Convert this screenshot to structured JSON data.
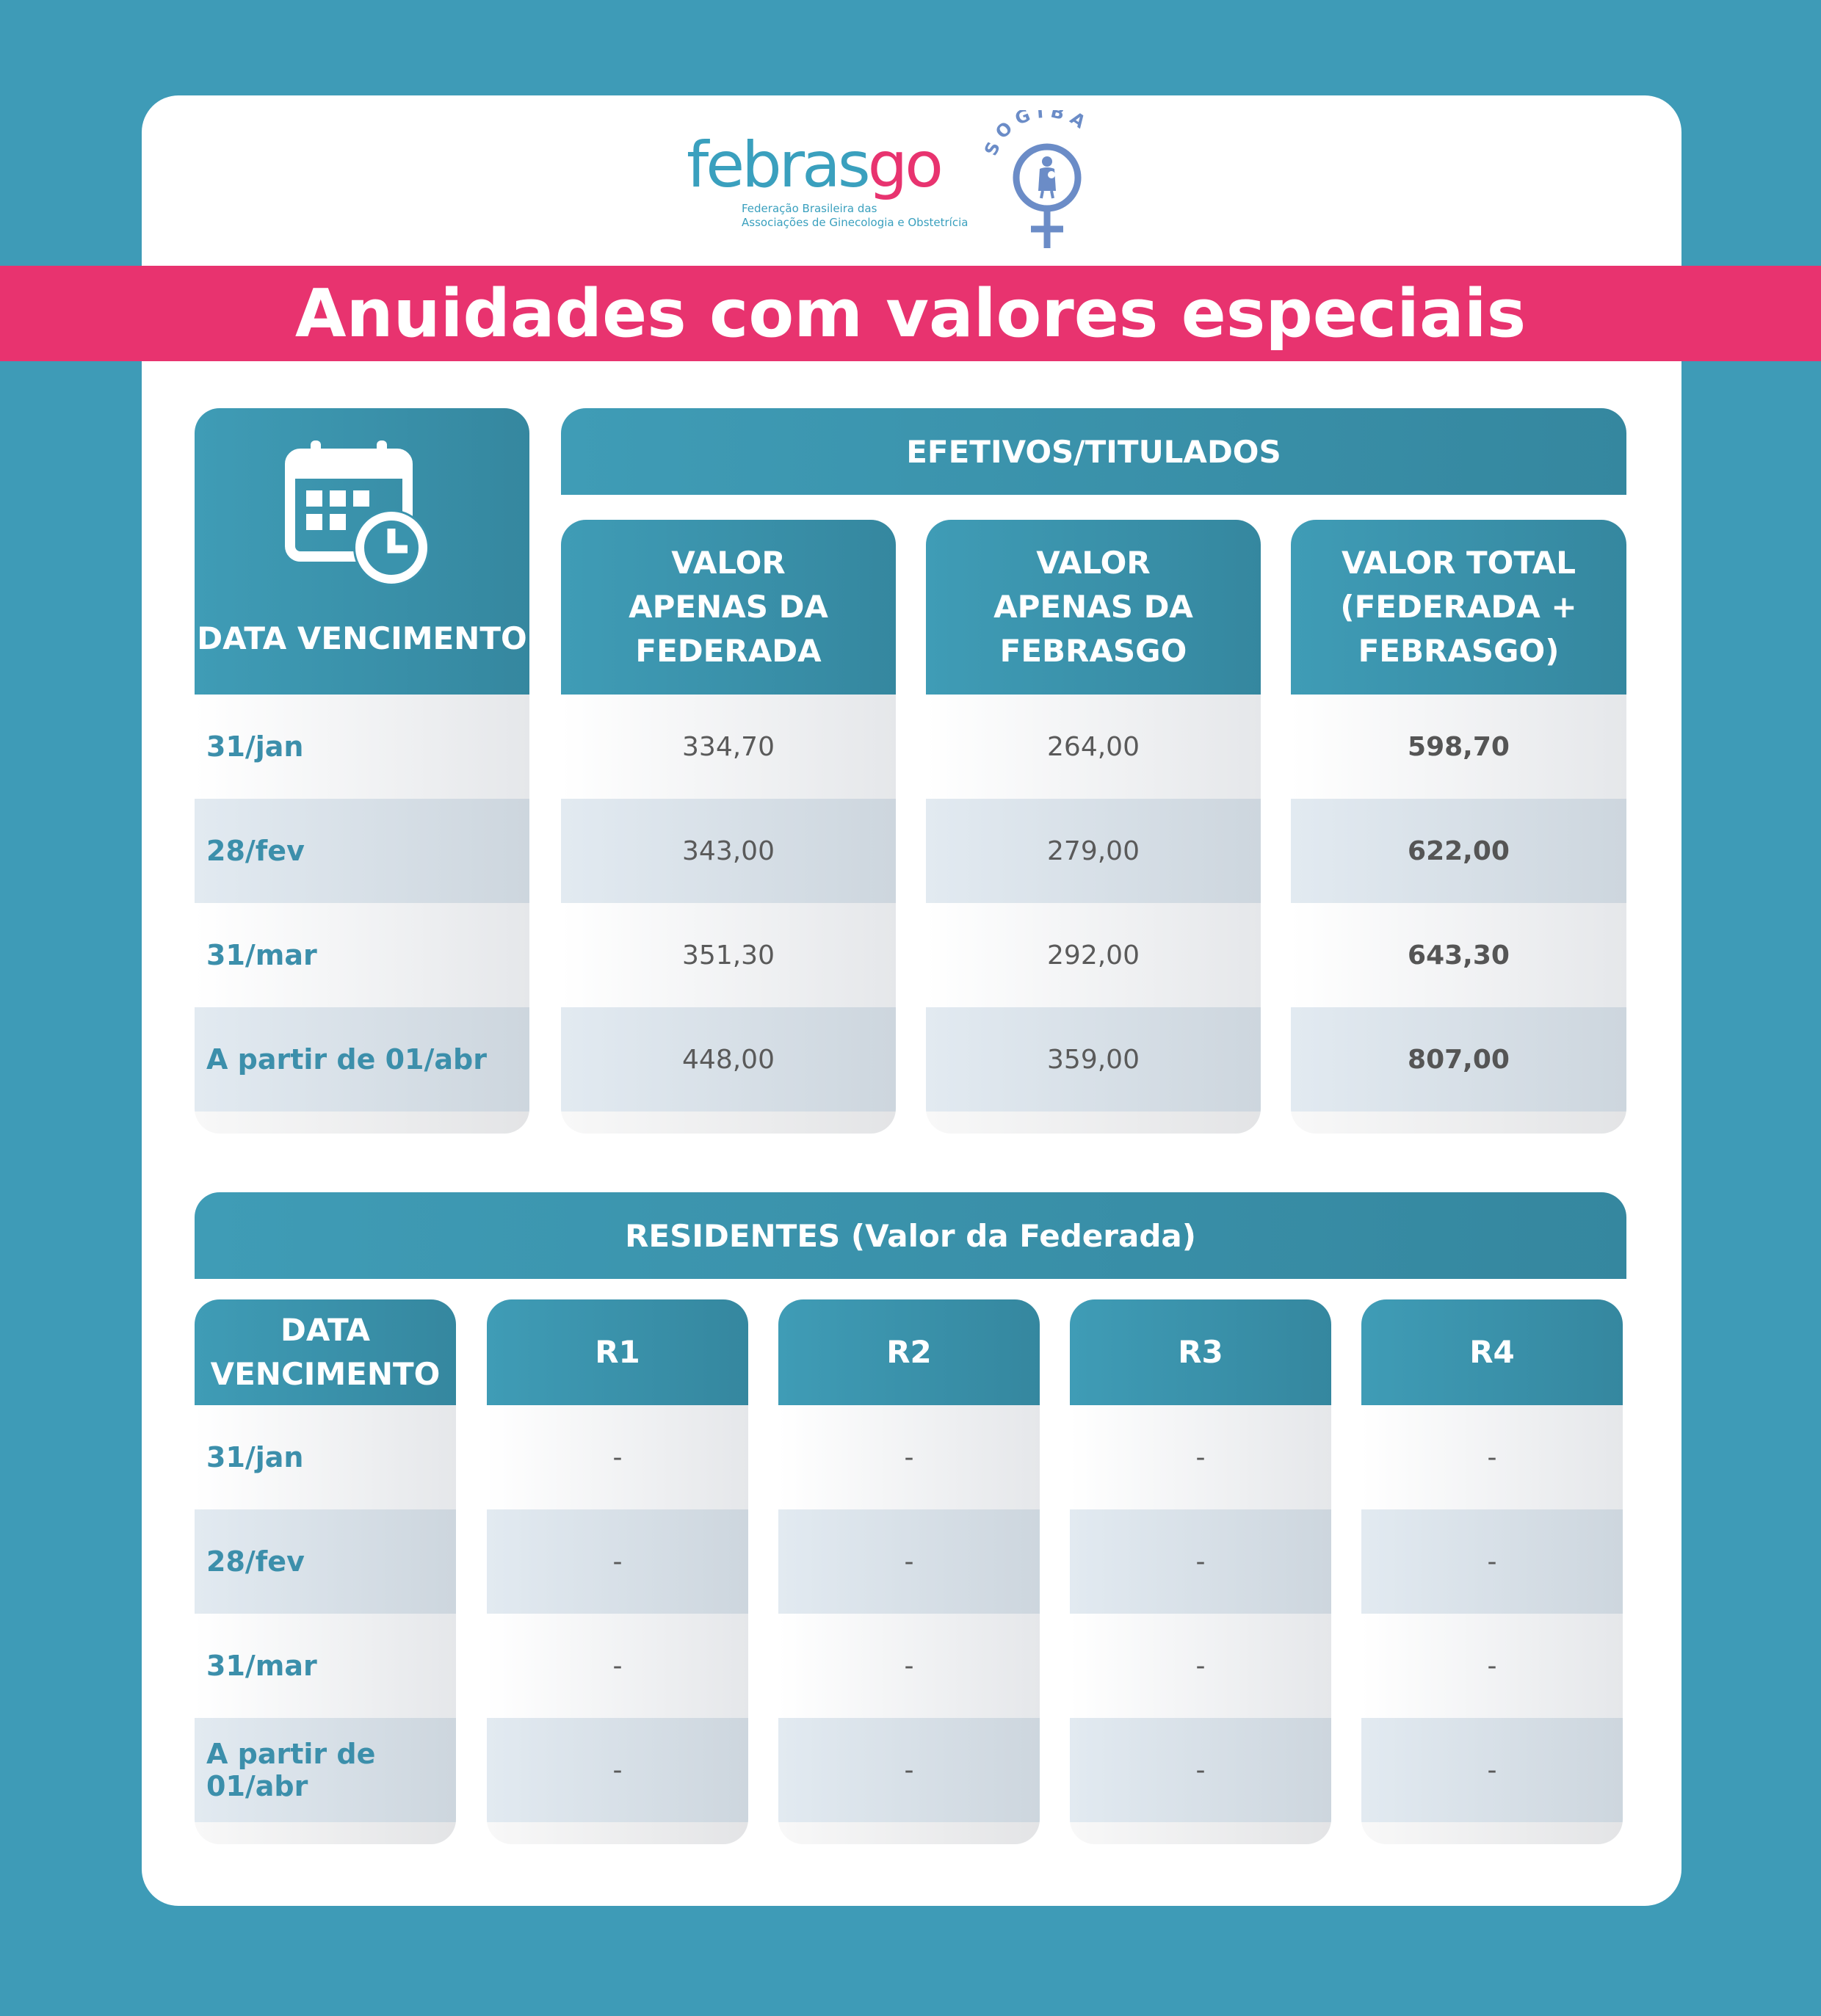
{
  "logos": {
    "febrasgo_word_blue": "febras",
    "febrasgo_word_pink": "go",
    "febrasgo_subtitle_line1": "Federação Brasileira das",
    "febrasgo_subtitle_line2": "Associações de Ginecologia e Obstetrícia",
    "sogiba_text": "SOGIBA"
  },
  "title": "Anuidades com valores especiais",
  "colors": {
    "background": "#3e9bb7",
    "banner": "#e8336f",
    "header": "#3f9cb6",
    "accent_text": "#3c8fab"
  },
  "efetivos": {
    "section_title": "EFETIVOS/TITULADOS",
    "date_header": "DATA VENCIMENTO",
    "date_icon": "calendar-clock-icon",
    "col1_header_l1": "VALOR",
    "col1_header_l2": "APENAS DA",
    "col1_header_l3": "FEDERADA",
    "col2_header_l1": "VALOR",
    "col2_header_l2": "APENAS DA",
    "col2_header_l3": "FEBRASGO",
    "col3_header_l1": "VALOR TOTAL",
    "col3_header_l2": "(FEDERADA +",
    "col3_header_l3": "FEBRASGO)",
    "rows": [
      {
        "date": "31/jan",
        "federada": "334,70",
        "febrasgo": "264,00",
        "total": "598,70"
      },
      {
        "date": "28/fev",
        "federada": "343,00",
        "febrasgo": "279,00",
        "total": "622,00"
      },
      {
        "date": "31/mar",
        "federada": "351,30",
        "febrasgo": "292,00",
        "total": "643,30"
      },
      {
        "date": "A partir de 01/abr",
        "federada": "448,00",
        "febrasgo": "359,00",
        "total": "807,00"
      }
    ]
  },
  "residentes": {
    "section_title": "RESIDENTES (Valor da Federada)",
    "date_header_l1": "DATA",
    "date_header_l2": "VENCIMENTO",
    "r_headers": [
      "R1",
      "R2",
      "R3",
      "R4"
    ],
    "rows": [
      {
        "date": "31/jan",
        "values": [
          "-",
          "-",
          "-",
          "-"
        ]
      },
      {
        "date": "28/fev",
        "values": [
          "-",
          "-",
          "-",
          "-"
        ]
      },
      {
        "date": "31/mar",
        "values": [
          "-",
          "-",
          "-",
          "-"
        ]
      },
      {
        "date": "A partir de 01/abr",
        "values": [
          "-",
          "-",
          "-",
          "-"
        ]
      }
    ]
  }
}
